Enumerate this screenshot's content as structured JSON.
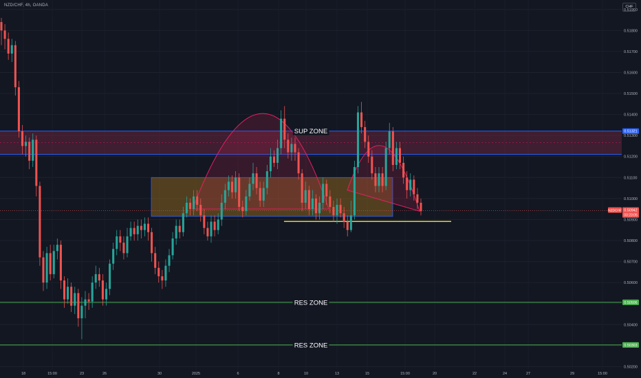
{
  "header": {
    "symbol_title": "NZD/CHF, 4h, OANDA",
    "currency_button": "CHF"
  },
  "colors": {
    "background": "#131722",
    "up": "#26a69a",
    "down": "#ef5350",
    "blue_line": "#2962ff",
    "green_line": "#4caf50",
    "yellow_line": "#f5eb32",
    "zone_red": "#8e2a4a",
    "zone_orange": "#c98a1e"
  },
  "chart_data": {
    "type": "candlestick",
    "title": "NZD/CHF, 4h, OANDA",
    "y_axis": {
      "range": [
        0.50185,
        0.51945
      ],
      "ticks": [
        "0.51900",
        "0.51800",
        "0.51700",
        "0.51600",
        "0.51500",
        "0.51400",
        "0.51300",
        "0.51200",
        "0.51100",
        "0.51000",
        "0.50900",
        "0.50800",
        "0.50700",
        "0.50600",
        "0.50500",
        "0.50400",
        "0.50300",
        "0.50200"
      ]
    },
    "x_axis": {
      "ticks": [
        "18",
        "15:00",
        "23",
        "26",
        "30",
        "2025",
        "6",
        "8",
        "10",
        "13",
        "15",
        "15:00",
        "20",
        "22",
        "24",
        "27",
        "29",
        "15:00"
      ]
    },
    "last_price": {
      "value": 0.50942,
      "label": "NZDCHF",
      "value_label": "0.50942",
      "countdown": "03:23:05"
    },
    "price_labels": [
      {
        "value": 0.51321,
        "text": "0.51321",
        "color": "#2962ff"
      },
      {
        "value": 0.50506,
        "text": "0.50506",
        "color": "#4caf50"
      },
      {
        "value": 0.50303,
        "text": "0.50303",
        "color": "#4caf50"
      }
    ],
    "horizontal_lines": [
      {
        "value": 0.51321,
        "color": "#2962ff",
        "label": ""
      },
      {
        "value": 0.5121,
        "color": "#2962ff",
        "label": ""
      },
      {
        "value": 0.50506,
        "color": "#4caf50",
        "label": "RES ZONE"
      },
      {
        "value": 0.50303,
        "color": "#4caf50",
        "label": "RES ZONE"
      }
    ],
    "zones": [
      {
        "name": "SUP ZONE",
        "top": 0.51321,
        "bottom": 0.5121,
        "color": "#8e2a4a"
      },
      {
        "name": "",
        "top": 0.511,
        "bottom": 0.50915,
        "color": "#c98a1e"
      }
    ],
    "trendline": {
      "value": 0.50891,
      "color": "#f5eb32"
    },
    "candles": [
      [
        0.5184,
        0.518,
        0.5186,
        0.5173
      ],
      [
        0.518,
        0.5176,
        0.5183,
        0.5171
      ],
      [
        0.5176,
        0.5169,
        0.5179,
        0.5166
      ],
      [
        0.5169,
        0.5173,
        0.5176,
        0.5165
      ],
      [
        0.5173,
        0.5153,
        0.5175,
        0.5149
      ],
      [
        0.5153,
        0.5132,
        0.5156,
        0.5129
      ],
      [
        0.5132,
        0.5125,
        0.5135,
        0.5121
      ],
      [
        0.5125,
        0.5127,
        0.513,
        0.512
      ],
      [
        0.5127,
        0.5118,
        0.5129,
        0.5114
      ],
      [
        0.5118,
        0.5128,
        0.5131,
        0.5115
      ],
      [
        0.5128,
        0.5106,
        0.513,
        0.5101
      ],
      [
        0.5106,
        0.5072,
        0.5108,
        0.5068
      ],
      [
        0.5072,
        0.506,
        0.5075,
        0.5056
      ],
      [
        0.506,
        0.5074,
        0.5077,
        0.5057
      ],
      [
        0.5074,
        0.5064,
        0.5078,
        0.5061
      ],
      [
        0.5064,
        0.5075,
        0.5078,
        0.5062
      ],
      [
        0.5075,
        0.5078,
        0.5081,
        0.5071
      ],
      [
        0.5078,
        0.5061,
        0.508,
        0.5057
      ],
      [
        0.5061,
        0.5052,
        0.5063,
        0.5048
      ],
      [
        0.5052,
        0.5058,
        0.5062,
        0.505
      ],
      [
        0.5058,
        0.5049,
        0.506,
        0.5046
      ],
      [
        0.5049,
        0.5055,
        0.5058,
        0.5045
      ],
      [
        0.5055,
        0.5043,
        0.5057,
        0.5039
      ],
      [
        0.5043,
        0.5049,
        0.5053,
        0.5033
      ],
      [
        0.5049,
        0.5052,
        0.5056,
        0.5043
      ],
      [
        0.5052,
        0.5051,
        0.5055,
        0.5047
      ],
      [
        0.5051,
        0.506,
        0.5063,
        0.5048
      ],
      [
        0.506,
        0.5064,
        0.5068,
        0.5057
      ],
      [
        0.5064,
        0.5061,
        0.5067,
        0.5058
      ],
      [
        0.5061,
        0.5052,
        0.5064,
        0.5049
      ],
      [
        0.5052,
        0.5057,
        0.506,
        0.5049
      ],
      [
        0.5057,
        0.5069,
        0.5071,
        0.5054
      ],
      [
        0.5069,
        0.5076,
        0.5079,
        0.5066
      ],
      [
        0.5076,
        0.5082,
        0.5085,
        0.5073
      ],
      [
        0.5082,
        0.5079,
        0.5085,
        0.5075
      ],
      [
        0.5079,
        0.5074,
        0.5082,
        0.5071
      ],
      [
        0.5074,
        0.5082,
        0.5086,
        0.5072
      ],
      [
        0.5082,
        0.5086,
        0.5089,
        0.508
      ],
      [
        0.5086,
        0.5083,
        0.5089,
        0.508
      ],
      [
        0.5083,
        0.5087,
        0.509,
        0.508
      ],
      [
        0.5087,
        0.5085,
        0.509,
        0.5081
      ],
      [
        0.5085,
        0.5088,
        0.5091,
        0.5082
      ],
      [
        0.5088,
        0.5084,
        0.5091,
        0.508
      ],
      [
        0.5084,
        0.5074,
        0.5086,
        0.507
      ],
      [
        0.5074,
        0.5067,
        0.5077,
        0.5064
      ],
      [
        0.5067,
        0.5063,
        0.507,
        0.506
      ],
      [
        0.5063,
        0.5061,
        0.5066,
        0.5057
      ],
      [
        0.5061,
        0.5068,
        0.5071,
        0.5058
      ],
      [
        0.5068,
        0.5073,
        0.5076,
        0.5065
      ],
      [
        0.5073,
        0.5081,
        0.5084,
        0.5071
      ],
      [
        0.5081,
        0.5087,
        0.509,
        0.5078
      ],
      [
        0.5087,
        0.5084,
        0.509,
        0.5081
      ],
      [
        0.5084,
        0.5093,
        0.5096,
        0.5082
      ],
      [
        0.5093,
        0.5098,
        0.5101,
        0.5091
      ],
      [
        0.5098,
        0.5095,
        0.51,
        0.5092
      ],
      [
        0.5095,
        0.5101,
        0.5104,
        0.5092
      ],
      [
        0.5101,
        0.5097,
        0.5104,
        0.5094
      ],
      [
        0.5097,
        0.5092,
        0.51,
        0.5089
      ],
      [
        0.5092,
        0.5086,
        0.5095,
        0.5083
      ],
      [
        0.5086,
        0.5082,
        0.5089,
        0.508
      ],
      [
        0.5082,
        0.5089,
        0.5092,
        0.5079
      ],
      [
        0.5089,
        0.5085,
        0.5092,
        0.5082
      ],
      [
        0.5085,
        0.509,
        0.5093,
        0.5083
      ],
      [
        0.509,
        0.5098,
        0.5102,
        0.5087
      ],
      [
        0.5098,
        0.5104,
        0.5107,
        0.5095
      ],
      [
        0.5104,
        0.5108,
        0.5111,
        0.5101
      ],
      [
        0.5108,
        0.5103,
        0.5111,
        0.51
      ],
      [
        0.5103,
        0.511,
        0.5113,
        0.51
      ],
      [
        0.511,
        0.5096,
        0.5112,
        0.5094
      ],
      [
        0.5096,
        0.5094,
        0.5099,
        0.5091
      ],
      [
        0.5094,
        0.5101,
        0.5104,
        0.5092
      ],
      [
        0.5101,
        0.5107,
        0.511,
        0.5099
      ],
      [
        0.5107,
        0.5112,
        0.5117,
        0.5104
      ],
      [
        0.5112,
        0.5105,
        0.5115,
        0.5102
      ],
      [
        0.5105,
        0.5099,
        0.5108,
        0.5096
      ],
      [
        0.5099,
        0.5105,
        0.5108,
        0.5096
      ],
      [
        0.5105,
        0.5113,
        0.5116,
        0.5102
      ],
      [
        0.5113,
        0.512,
        0.5124,
        0.511
      ],
      [
        0.512,
        0.5117,
        0.5123,
        0.5115
      ],
      [
        0.5117,
        0.5124,
        0.5128,
        0.5114
      ],
      [
        0.5124,
        0.5138,
        0.5142,
        0.5121
      ],
      [
        0.5138,
        0.5128,
        0.5144,
        0.5124
      ],
      [
        0.5128,
        0.5122,
        0.5131,
        0.5119
      ],
      [
        0.5122,
        0.5126,
        0.5129,
        0.5118
      ],
      [
        0.5126,
        0.5122,
        0.5129,
        0.5118
      ],
      [
        0.5122,
        0.5112,
        0.5124,
        0.5109
      ],
      [
        0.5112,
        0.5098,
        0.5114,
        0.5094
      ],
      [
        0.5098,
        0.5104,
        0.5108,
        0.5095
      ],
      [
        0.5104,
        0.5095,
        0.5106,
        0.5092
      ],
      [
        0.5095,
        0.51,
        0.5104,
        0.5092
      ],
      [
        0.51,
        0.5093,
        0.5102,
        0.509
      ],
      [
        0.5093,
        0.5098,
        0.5101,
        0.509
      ],
      [
        0.5098,
        0.5107,
        0.511,
        0.5095
      ],
      [
        0.5107,
        0.5101,
        0.5109,
        0.5097
      ],
      [
        0.5101,
        0.5096,
        0.5104,
        0.5093
      ],
      [
        0.5096,
        0.5092,
        0.5099,
        0.5089
      ],
      [
        0.5092,
        0.5097,
        0.51,
        0.5088
      ],
      [
        0.5097,
        0.5093,
        0.51,
        0.5091
      ],
      [
        0.5093,
        0.5089,
        0.5096,
        0.5086
      ],
      [
        0.5089,
        0.5085,
        0.5092,
        0.5082
      ],
      [
        0.5085,
        0.5092,
        0.5099,
        0.5084
      ],
      [
        0.5092,
        0.5115,
        0.5118,
        0.509
      ],
      [
        0.5115,
        0.5141,
        0.5144,
        0.5112
      ],
      [
        0.5141,
        0.5134,
        0.5146,
        0.5131
      ],
      [
        0.5134,
        0.5127,
        0.5137,
        0.5124
      ],
      [
        0.5127,
        0.512,
        0.513,
        0.5117
      ],
      [
        0.512,
        0.5112,
        0.5123,
        0.5109
      ],
      [
        0.5112,
        0.5106,
        0.5115,
        0.5103
      ],
      [
        0.5106,
        0.5112,
        0.5115,
        0.5103
      ],
      [
        0.5112,
        0.5106,
        0.5115,
        0.5103
      ],
      [
        0.5106,
        0.5124,
        0.5127,
        0.5104
      ],
      [
        0.5124,
        0.5132,
        0.5136,
        0.5121
      ],
      [
        0.5132,
        0.5116,
        0.5134,
        0.5113
      ],
      [
        0.5116,
        0.5124,
        0.5127,
        0.5114
      ],
      [
        0.5124,
        0.5117,
        0.5127,
        0.5114
      ],
      [
        0.5117,
        0.511,
        0.512,
        0.5107
      ],
      [
        0.511,
        0.5104,
        0.5113,
        0.51
      ],
      [
        0.5104,
        0.5109,
        0.5112,
        0.5101
      ],
      [
        0.5109,
        0.5102,
        0.5111,
        0.5099
      ],
      [
        0.5102,
        0.5098,
        0.5105,
        0.5095
      ],
      [
        0.5098,
        0.5094,
        0.51,
        0.5092
      ]
    ]
  },
  "annotations": {
    "sup_zone_label": "SUP ZONE",
    "res_zone_label_1": "RES ZONE",
    "res_zone_label_2": "RES ZONE"
  }
}
